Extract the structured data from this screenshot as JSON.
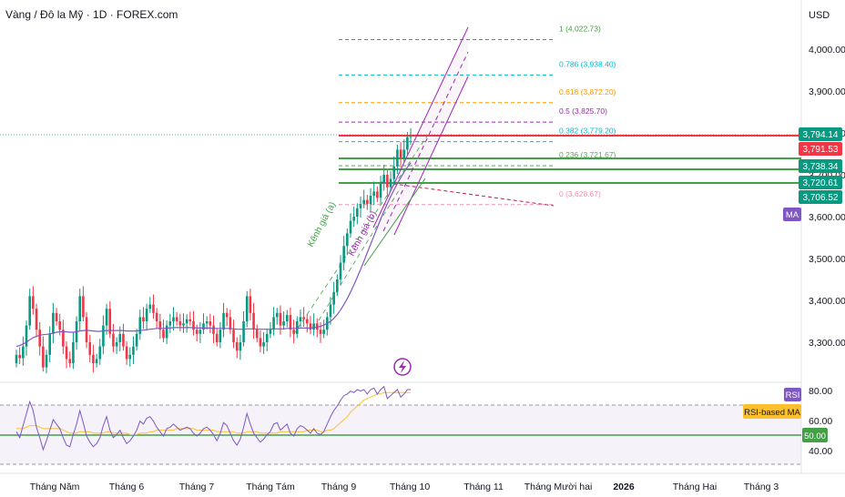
{
  "header": {
    "title": "Vàng / Đô la Mỹ · 1D · FOREX.com",
    "currency": "USD"
  },
  "price_axis": {
    "ticks": [
      "4,000.00",
      "3,900.00",
      "3,800.00",
      "3,700.00",
      "3,600.00",
      "3,500.00",
      "3,400.00",
      "3,300.00"
    ]
  },
  "rsi_axis": {
    "ticks": [
      "80.00",
      "60.00",
      "40.00"
    ]
  },
  "time_axis": {
    "ticks": [
      "Tháng Năm",
      "Tháng 6",
      "Tháng 7",
      "Tháng Tám",
      "Tháng 9",
      "Tháng 10",
      "Tháng 11",
      "Tháng Mười hai",
      "2026",
      "Tháng Hai",
      "Tháng 3"
    ]
  },
  "price_tags": [
    {
      "label": "3,794.14",
      "value": 3794.14,
      "color": "#089981"
    },
    {
      "label": "3,791.53",
      "value": 3791.53,
      "color": "#f23645"
    },
    {
      "label": "3,738.34",
      "value": 3738.34,
      "color": "#089981"
    },
    {
      "label": "3,720.61",
      "value": 3720.61,
      "color": "#089981"
    },
    {
      "label": "3,706.52",
      "value": 3706.52,
      "color": "#089981"
    }
  ],
  "ma_badge": "MA",
  "rsi_badges": {
    "rsi": "RSI",
    "rsi_ma": "RSI-based MA",
    "level": "50.00"
  },
  "fib_levels": [
    {
      "label": "1 (4,022.73)",
      "price": 4022.73,
      "color": "#43a047"
    },
    {
      "label": "0.786 (3,938.40)",
      "price": 3938.4,
      "color": "#00bcd4"
    },
    {
      "label": "0.618 (3,872.20)",
      "price": 3872.2,
      "color": "#ff9800"
    },
    {
      "label": "0.5 (3,825.70)",
      "price": 3825.7,
      "color": "#9c27b0"
    },
    {
      "label": "0.382 (3,779.20)",
      "price": 3779.2,
      "color": "#00bcd4"
    },
    {
      "label": "0.236 (3,721.67)",
      "price": 3721.67,
      "color": "#4caf50"
    },
    {
      "label": "0 (3,628.67)",
      "price": 3628.67,
      "color": "#f48fb1"
    }
  ],
  "channel_labels": {
    "a": "Kênh giá (a)",
    "b": "Kênh giá (b)"
  },
  "colors": {
    "up": "#089981",
    "down": "#f23645",
    "ma": "#7e57c2",
    "rsi": "#7e57c2",
    "rsi_ma": "#fbc02d",
    "level": "#43a047",
    "channel_a": "#43a047",
    "channel_b": "#9c27b0"
  },
  "chart_data": {
    "type": "candlestick",
    "title": "Vàng / Đô la Mỹ · 1D · FOREX.com",
    "ylabel": "USD",
    "ylim": [
      3220,
      4080
    ],
    "close": [
      3270,
      3262,
      3290,
      3340,
      3410,
      3380,
      3330,
      3290,
      3240,
      3270,
      3320,
      3370,
      3350,
      3330,
      3290,
      3260,
      3250,
      3300,
      3350,
      3410,
      3360,
      3300,
      3270,
      3250,
      3260,
      3290,
      3340,
      3380,
      3320,
      3290,
      3300,
      3320,
      3290,
      3260,
      3270,
      3290,
      3320,
      3360,
      3350,
      3380,
      3390,
      3370,
      3350,
      3330,
      3310,
      3340,
      3350,
      3360,
      3350,
      3340,
      3345,
      3355,
      3350,
      3330,
      3320,
      3330,
      3345,
      3350,
      3340,
      3320,
      3300,
      3330,
      3370,
      3360,
      3330,
      3300,
      3280,
      3300,
      3350,
      3410,
      3370,
      3330,
      3310,
      3290,
      3300,
      3320,
      3330,
      3360,
      3370,
      3340,
      3350,
      3365,
      3330,
      3320,
      3350,
      3360,
      3355,
      3345,
      3330,
      3345,
      3330,
      3320,
      3330,
      3360,
      3390,
      3420,
      3450,
      3490,
      3530,
      3560,
      3590,
      3600,
      3620,
      3630,
      3640,
      3630,
      3650,
      3660,
      3645,
      3680,
      3700,
      3670,
      3690,
      3720,
      3760,
      3740,
      3760,
      3790,
      3793
    ],
    "ma": [
      3290,
      3292,
      3296,
      3300,
      3306,
      3311,
      3314,
      3317,
      3318,
      3319,
      3320,
      3322,
      3324,
      3325,
      3325,
      3325,
      3324,
      3324,
      3325,
      3327,
      3328,
      3328,
      3328,
      3327,
      3326,
      3326,
      3327,
      3328,
      3328,
      3328,
      3328,
      3328,
      3328,
      3327,
      3327,
      3327,
      3327,
      3328,
      3329,
      3330,
      3331,
      3332,
      3333,
      3333,
      3333,
      3334,
      3334,
      3335,
      3335,
      3335,
      3335,
      3335,
      3335,
      3335,
      3334,
      3334,
      3334,
      3334,
      3334,
      3333,
      3333,
      3333,
      3333,
      3333,
      3333,
      3332,
      3331,
      3331,
      3331,
      3332,
      3332,
      3332,
      3331,
      3331,
      3331,
      3331,
      3331,
      3332,
      3332,
      3332,
      3332,
      3333,
      3333,
      3333,
      3333,
      3334,
      3334,
      3334,
      3334,
      3335,
      3336,
      3338,
      3341,
      3345,
      3350,
      3357,
      3366,
      3377,
      3390,
      3404,
      3420,
      3437,
      3455,
      3474,
      3494,
      3514,
      3534,
      3554,
      3574,
      3594,
      3613,
      3631,
      3648,
      3664,
      3679,
      3693,
      3706,
      3718,
      3729
    ],
    "rsi_ylim": [
      30,
      85
    ],
    "rsi_levels": [
      70,
      50,
      30
    ],
    "rsi": [
      52,
      48,
      56,
      64,
      72,
      66,
      55,
      48,
      40,
      46,
      53,
      60,
      57,
      54,
      48,
      43,
      42,
      50,
      57,
      66,
      58,
      49,
      45,
      42,
      44,
      48,
      56,
      62,
      53,
      48,
      50,
      53,
      48,
      44,
      46,
      49,
      53,
      59,
      57,
      61,
      62,
      59,
      55,
      52,
      49,
      54,
      55,
      57,
      55,
      53,
      54,
      55,
      54,
      51,
      49,
      51,
      54,
      55,
      53,
      50,
      46,
      51,
      58,
      56,
      51,
      46,
      43,
      47,
      55,
      64,
      57,
      51,
      48,
      45,
      47,
      50,
      52,
      57,
      58,
      53,
      55,
      57,
      51,
      49,
      54,
      56,
      55,
      53,
      51,
      54,
      51,
      50,
      52,
      57,
      62,
      66,
      69,
      73,
      76,
      77,
      79,
      78,
      80,
      79,
      80,
      77,
      80,
      81,
      77,
      80,
      82,
      74,
      76,
      78,
      80,
      75,
      77,
      80,
      80
    ],
    "rsi_ma": [
      54,
      54,
      54,
      55,
      56,
      56,
      56,
      55,
      54,
      54,
      54,
      54,
      54,
      54,
      53,
      52,
      51,
      51,
      51,
      52,
      52,
      52,
      52,
      51,
      51,
      51,
      51,
      52,
      52,
      51,
      51,
      51,
      51,
      51,
      50,
      50,
      50,
      51,
      51,
      51,
      52,
      52,
      53,
      53,
      53,
      53,
      53,
      53,
      54,
      54,
      54,
      54,
      54,
      54,
      53,
      53,
      53,
      53,
      53,
      53,
      52,
      52,
      52,
      52,
      52,
      52,
      51,
      51,
      51,
      52,
      52,
      52,
      52,
      51,
      51,
      51,
      51,
      51,
      51,
      52,
      52,
      52,
      52,
      52,
      52,
      52,
      52,
      53,
      53,
      53,
      53,
      52,
      52,
      53,
      53,
      54,
      56,
      58,
      60,
      62,
      65,
      67,
      69,
      71,
      73,
      74,
      75,
      76,
      77,
      77,
      78,
      78,
      78,
      78,
      78,
      78,
      78,
      78,
      78
    ]
  }
}
